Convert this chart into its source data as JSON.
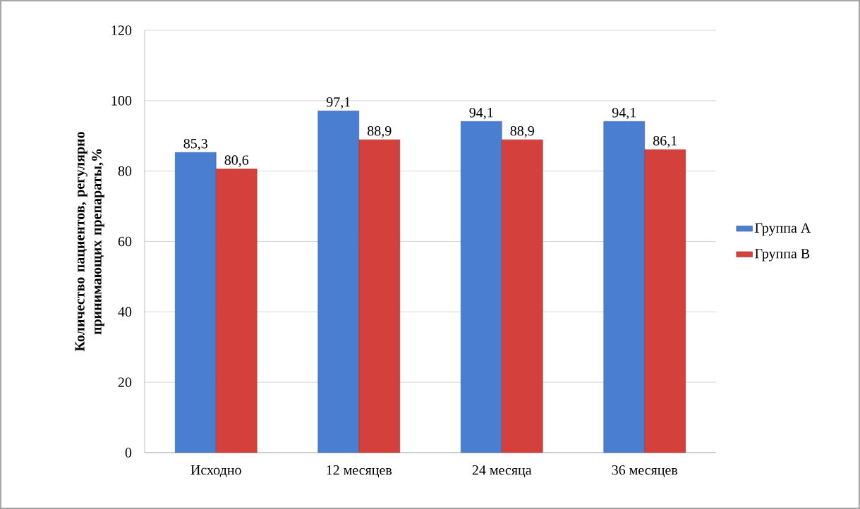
{
  "chart_data": {
    "type": "bar",
    "ylabel": "Количество пациентов, регулярно принимающих препараты,%",
    "categories": [
      "Исходно",
      "12 месяцев",
      "24 месяца",
      "36 месяцев"
    ],
    "series": [
      {
        "name": "Группа А",
        "color": "#4a7ed0",
        "values": [
          85.3,
          97.1,
          94.1,
          94.1
        ],
        "value_labels": [
          "85,3",
          "97,1",
          "94,1",
          "94,1"
        ]
      },
      {
        "name": "Группа В",
        "color": "#d4403c",
        "values": [
          80.6,
          88.9,
          88.9,
          86.1
        ],
        "value_labels": [
          "80,6",
          "88,9",
          "88,9",
          "86,1"
        ]
      }
    ],
    "ylim": [
      0,
      120
    ],
    "yticks": [
      0,
      20,
      40,
      60,
      80,
      100,
      120
    ],
    "grid": "y",
    "legend": "right"
  }
}
